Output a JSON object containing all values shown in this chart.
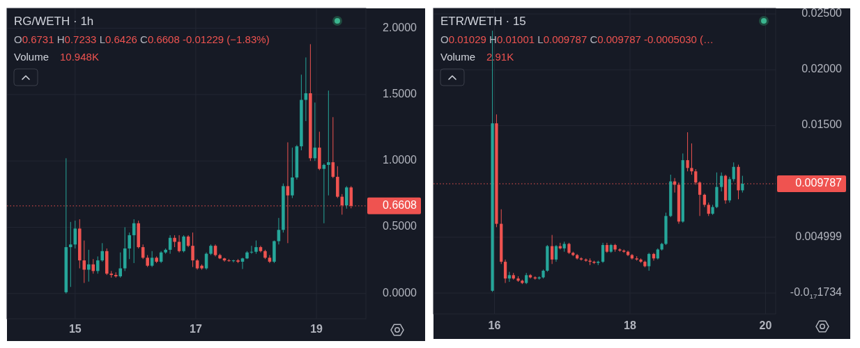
{
  "chart_data": [
    {
      "type": "candlestick",
      "title": "RG/WETH · 1h",
      "subtitle": "O0.6731 H0.7233 L0.6426 C0.6608 -0.01229 (−1.83%)",
      "annotations": [
        "Volume",
        "10.948K"
      ],
      "x": [
        14.85,
        14.925,
        15.0,
        15.075,
        15.15,
        15.225,
        15.3,
        15.375,
        15.45,
        15.525,
        15.6,
        15.675,
        15.75,
        15.825,
        15.9,
        15.975,
        16.05,
        16.125,
        16.2,
        16.275,
        16.35,
        16.425,
        16.5,
        16.575,
        16.65,
        16.725,
        16.8,
        16.875,
        16.95,
        17.025,
        17.1,
        17.175,
        17.25,
        17.325,
        17.4,
        17.475,
        17.55,
        17.625,
        17.7,
        17.775,
        17.85,
        17.925,
        18.0,
        18.075,
        18.15,
        18.225,
        18.3,
        18.375,
        18.45,
        18.525,
        18.6,
        18.675,
        18.75,
        18.825,
        18.9,
        18.975,
        19.05,
        19.125,
        19.2,
        19.275,
        19.35,
        19.425,
        19.5,
        19.575
      ],
      "ohlc": [
        [
          0.01,
          1.02,
          0.0,
          0.35
        ],
        [
          0.35,
          0.54,
          0.05,
          0.37
        ],
        [
          0.37,
          0.55,
          0.34,
          0.49
        ],
        [
          0.49,
          0.56,
          0.19,
          0.25
        ],
        [
          0.25,
          0.4,
          0.08,
          0.18
        ],
        [
          0.18,
          0.33,
          0.09,
          0.22
        ],
        [
          0.22,
          0.26,
          0.15,
          0.17
        ],
        [
          0.17,
          0.28,
          0.15,
          0.25
        ],
        [
          0.25,
          0.38,
          0.24,
          0.32
        ],
        [
          0.32,
          0.34,
          0.14,
          0.15
        ],
        [
          0.15,
          0.17,
          0.12,
          0.14
        ],
        [
          0.14,
          0.16,
          0.12,
          0.13
        ],
        [
          0.13,
          0.31,
          0.12,
          0.19
        ],
        [
          0.19,
          0.5,
          0.17,
          0.34
        ],
        [
          0.34,
          0.46,
          0.26,
          0.44
        ],
        [
          0.44,
          0.56,
          0.23,
          0.53
        ],
        [
          0.53,
          0.55,
          0.34,
          0.35
        ],
        [
          0.35,
          0.37,
          0.26,
          0.27
        ],
        [
          0.27,
          0.29,
          0.2,
          0.21
        ],
        [
          0.21,
          0.32,
          0.2,
          0.27
        ],
        [
          0.27,
          0.28,
          0.23,
          0.24
        ],
        [
          0.24,
          0.32,
          0.23,
          0.31
        ],
        [
          0.31,
          0.34,
          0.3,
          0.33
        ],
        [
          0.33,
          0.44,
          0.3,
          0.42
        ],
        [
          0.42,
          0.44,
          0.35,
          0.39
        ],
        [
          0.39,
          0.44,
          0.31,
          0.32
        ],
        [
          0.32,
          0.44,
          0.31,
          0.43
        ],
        [
          0.43,
          0.44,
          0.35,
          0.36
        ],
        [
          0.36,
          0.46,
          0.2,
          0.25
        ],
        [
          0.25,
          0.26,
          0.18,
          0.19
        ],
        [
          0.21,
          0.22,
          0.18,
          0.19
        ],
        [
          0.19,
          0.31,
          0.18,
          0.3
        ],
        [
          0.3,
          0.37,
          0.29,
          0.36
        ],
        [
          0.36,
          0.37,
          0.28,
          0.29
        ],
        [
          0.29,
          0.3,
          0.26,
          0.265
        ],
        [
          0.265,
          0.27,
          0.24,
          0.25
        ],
        [
          0.25,
          0.26,
          0.24,
          0.245
        ],
        [
          0.245,
          0.255,
          0.235,
          0.25
        ],
        [
          0.25,
          0.26,
          0.23,
          0.24
        ],
        [
          0.24,
          0.27,
          0.185,
          0.265
        ],
        [
          0.265,
          0.32,
          0.26,
          0.31
        ],
        [
          0.31,
          0.36,
          0.3,
          0.315
        ],
        [
          0.315,
          0.4,
          0.3,
          0.35
        ],
        [
          0.35,
          0.36,
          0.31,
          0.32
        ],
        [
          0.32,
          0.33,
          0.26,
          0.27
        ],
        [
          0.27,
          0.29,
          0.23,
          0.24
        ],
        [
          0.24,
          0.4,
          0.23,
          0.395
        ],
        [
          0.395,
          0.57,
          0.37,
          0.48
        ],
        [
          0.48,
          0.83,
          0.46,
          0.81
        ],
        [
          0.81,
          1.14,
          0.38,
          0.74
        ],
        [
          0.74,
          1.1,
          0.72,
          0.875
        ],
        [
          0.875,
          1.12,
          0.86,
          1.11
        ],
        [
          1.11,
          1.65,
          1.08,
          1.46
        ],
        [
          1.46,
          1.78,
          1.3,
          1.51
        ],
        [
          1.51,
          1.88,
          1.0,
          1.02
        ],
        [
          1.02,
          1.44,
          1.0,
          1.1
        ],
        [
          1.1,
          1.22,
          0.93,
          0.94
        ],
        [
          0.94,
          0.98,
          0.53,
          0.97
        ],
        [
          0.97,
          1.53,
          0.74,
          0.99
        ],
        [
          0.99,
          1.33,
          0.87,
          0.88
        ],
        [
          0.88,
          0.96,
          0.72,
          0.73
        ],
        [
          0.73,
          0.75,
          0.595,
          0.665
        ],
        [
          0.665,
          0.81,
          0.64,
          0.8
        ],
        [
          0.8,
          0.81,
          0.6426,
          0.6608
        ]
      ],
      "colors": [
        "#26a69a",
        "#26a69a",
        "#26a69a",
        "#ef5350",
        "#ef5350",
        "#26a69a",
        "#ef5350",
        "#26a69a",
        "#26a69a",
        "#ef5350",
        "#ef5350",
        "#ef5350",
        "#26a69a",
        "#26a69a",
        "#26a69a",
        "#26a69a",
        "#ef5350",
        "#ef5350",
        "#ef5350",
        "#26a69a",
        "#ef5350",
        "#26a69a",
        "#26a69a",
        "#26a69a",
        "#ef5350",
        "#ef5350",
        "#26a69a",
        "#ef5350",
        "#ef5350",
        "#ef5350",
        "#ef5350",
        "#26a69a",
        "#26a69a",
        "#ef5350",
        "#ef5350",
        "#ef5350",
        "#ef5350",
        "#26a69a",
        "#ef5350",
        "#26a69a",
        "#26a69a",
        "#26a69a",
        "#26a69a",
        "#ef5350",
        "#ef5350",
        "#ef5350",
        "#26a69a",
        "#26a69a",
        "#26a69a",
        "#ef5350",
        "#26a69a",
        "#26a69a",
        "#26a69a",
        "#26a69a",
        "#ef5350",
        "#26a69a",
        "#ef5350",
        "#26a69a",
        "#26a69a",
        "#ef5350",
        "#ef5350",
        "#ef5350",
        "#26a69a",
        "#ef5350"
      ],
      "xlim": [
        13.87,
        19.82
      ],
      "ylim": [
        -0.19,
        2.15
      ],
      "xticks": [
        15,
        17,
        19
      ],
      "yticks": [
        {
          "value": 0,
          "label": "0.0000"
        },
        {
          "value": 0.5,
          "label": "0.5000"
        },
        {
          "value": 1,
          "label": "1.0000"
        },
        {
          "value": 1.5,
          "label": "1.5000"
        },
        {
          "value": 2,
          "label": "2.0000"
        }
      ],
      "grid": true,
      "ref_lines": [
        {
          "axis": "y",
          "value": 0.6608,
          "label": "0.6608",
          "color": "#ef5350",
          "line_style": "dotted"
        }
      ]
    },
    {
      "type": "candlestick",
      "title": "ETR/WETH · 15",
      "subtitle": "O0.01029 H0.01001 L0.009787 C0.009787 -0.0005030 (…",
      "annotations": [
        "Volume",
        "2.91K"
      ],
      "x": [
        15.97,
        16.03,
        16.1,
        16.16,
        16.22,
        16.28,
        16.35,
        16.41,
        16.47,
        16.53,
        16.6,
        16.66,
        16.72,
        16.78,
        16.85,
        16.91,
        16.97,
        17.03,
        17.1,
        17.16,
        17.22,
        17.28,
        17.35,
        17.41,
        17.47,
        17.53,
        17.6,
        17.66,
        17.72,
        17.78,
        17.85,
        17.91,
        17.97,
        18.03,
        18.1,
        18.16,
        18.22,
        18.28,
        18.35,
        18.41,
        18.47,
        18.53,
        18.6,
        18.66,
        18.72,
        18.78,
        18.85,
        18.91,
        18.97,
        19.03,
        19.1,
        19.16,
        19.22,
        19.28,
        19.35,
        19.41,
        19.47,
        19.53,
        19.6,
        19.66
      ],
      "ohlc": [
        [
          0.0002,
          0.0235,
          0.0001,
          0.0152
        ],
        [
          0.0152,
          0.016,
          0.0059,
          0.0062
        ],
        [
          0.0062,
          0.0075,
          0.0026,
          0.0028
        ],
        [
          0.0028,
          0.003,
          0.0009,
          0.0013
        ],
        [
          0.0013,
          0.0019,
          0.001,
          0.0016
        ],
        [
          0.0016,
          0.0018,
          0.0012,
          0.0013
        ],
        [
          0.0013,
          0.0015,
          0.001,
          0.0011
        ],
        [
          0.0011,
          0.0012,
          0.0008,
          0.0009
        ],
        [
          0.0009,
          0.0018,
          0.0008,
          0.0016
        ],
        [
          0.0016,
          0.0017,
          0.0013,
          0.0014
        ],
        [
          0.0014,
          0.0015,
          0.0012,
          0.0013
        ],
        [
          0.0013,
          0.0015,
          0.0012,
          0.0014
        ],
        [
          0.0014,
          0.0021,
          0.0013,
          0.002
        ],
        [
          0.002,
          0.0043,
          0.0019,
          0.0042
        ],
        [
          0.0042,
          0.0052,
          0.0026,
          0.003
        ],
        [
          0.003,
          0.0043,
          0.0028,
          0.0042
        ],
        [
          0.0042,
          0.0045,
          0.0039,
          0.004
        ],
        [
          0.004,
          0.0046,
          0.0037,
          0.0044
        ],
        [
          0.0044,
          0.0045,
          0.0035,
          0.0036
        ],
        [
          0.0036,
          0.0037,
          0.0033,
          0.0034
        ],
        [
          0.0034,
          0.0035,
          0.003,
          0.0031
        ],
        [
          0.0031,
          0.0032,
          0.0029,
          0.003
        ],
        [
          0.003,
          0.0031,
          0.0028,
          0.0029
        ],
        [
          0.0029,
          0.0031,
          0.0025,
          0.0028
        ],
        [
          0.0028,
          0.0029,
          0.0026,
          0.0027
        ],
        [
          0.0027,
          0.0029,
          0.0025,
          0.0028
        ],
        [
          0.0028,
          0.0045,
          0.0027,
          0.0043
        ],
        [
          0.0043,
          0.0045,
          0.0036,
          0.0037
        ],
        [
          0.0037,
          0.0044,
          0.0036,
          0.0043
        ],
        [
          0.0043,
          0.0044,
          0.0037,
          0.0039
        ],
        [
          0.0039,
          0.004,
          0.0037,
          0.0038
        ],
        [
          0.0038,
          0.0039,
          0.0036,
          0.0037
        ],
        [
          0.0037,
          0.0038,
          0.0033,
          0.0034
        ],
        [
          0.0034,
          0.0035,
          0.003,
          0.0031
        ],
        [
          0.0031,
          0.0033,
          0.0029,
          0.003
        ],
        [
          0.003,
          0.0031,
          0.0027,
          0.0028
        ],
        [
          0.0028,
          0.0029,
          0.0023,
          0.0024
        ],
        [
          0.0024,
          0.0036,
          0.002,
          0.0035
        ],
        [
          0.0035,
          0.0036,
          0.0029,
          0.0031
        ],
        [
          0.0031,
          0.004,
          0.003,
          0.0039
        ],
        [
          0.0039,
          0.0045,
          0.0038,
          0.0044
        ],
        [
          0.0044,
          0.0072,
          0.0043,
          0.0069
        ],
        [
          0.0069,
          0.0106,
          0.0068,
          0.01
        ],
        [
          0.01,
          0.0103,
          0.009,
          0.0097
        ],
        [
          0.0097,
          0.0099,
          0.0062,
          0.0064
        ],
        [
          0.0064,
          0.0125,
          0.0063,
          0.0119
        ],
        [
          0.0119,
          0.0144,
          0.0109,
          0.0112
        ],
        [
          0.0112,
          0.0134,
          0.0106,
          0.0109
        ],
        [
          0.0109,
          0.0111,
          0.0097,
          0.0099
        ],
        [
          0.0099,
          0.01,
          0.0069,
          0.0088
        ],
        [
          0.0088,
          0.0089,
          0.0077,
          0.0079
        ],
        [
          0.0079,
          0.0081,
          0.0069,
          0.0071
        ],
        [
          0.0071,
          0.0079,
          0.007,
          0.0077
        ],
        [
          0.0077,
          0.0108,
          0.0076,
          0.0095
        ],
        [
          0.0095,
          0.0108,
          0.0091,
          0.0105
        ],
        [
          0.0105,
          0.0106,
          0.008,
          0.0083
        ],
        [
          0.0083,
          0.0104,
          0.0081,
          0.0102
        ],
        [
          0.0102,
          0.0117,
          0.01,
          0.0113
        ],
        [
          0.0113,
          0.0115,
          0.0084,
          0.0092
        ],
        [
          0.0092,
          0.0105,
          0.009,
          0.009787
        ]
      ],
      "colors": [
        "#26a69a",
        "#ef5350",
        "#ef5350",
        "#ef5350",
        "#26a69a",
        "#ef5350",
        "#ef5350",
        "#ef5350",
        "#26a69a",
        "#ef5350",
        "#ef5350",
        "#26a69a",
        "#26a69a",
        "#26a69a",
        "#ef5350",
        "#26a69a",
        "#ef5350",
        "#26a69a",
        "#ef5350",
        "#ef5350",
        "#ef5350",
        "#ef5350",
        "#ef5350",
        "#ef5350",
        "#ef5350",
        "#26a69a",
        "#26a69a",
        "#ef5350",
        "#26a69a",
        "#ef5350",
        "#ef5350",
        "#ef5350",
        "#ef5350",
        "#ef5350",
        "#ef5350",
        "#ef5350",
        "#ef5350",
        "#26a69a",
        "#ef5350",
        "#26a69a",
        "#26a69a",
        "#26a69a",
        "#26a69a",
        "#ef5350",
        "#ef5350",
        "#26a69a",
        "#ef5350",
        "#ef5350",
        "#ef5350",
        "#ef5350",
        "#ef5350",
        "#ef5350",
        "#26a69a",
        "#26a69a",
        "#26a69a",
        "#ef5350",
        "#26a69a",
        "#26a69a",
        "#ef5350",
        "#26a69a"
      ],
      "xlim": [
        15.1,
        20.15
      ],
      "ylim": [
        -0.00187,
        0.0255
      ],
      "xticks": [
        16,
        18,
        20
      ],
      "yticks": [
        {
          "value": -1.734e-18,
          "label": "-0.0$_{17}$1734"
        },
        {
          "value": 0.004999,
          "label": "0.004999"
        },
        {
          "value": 0.015,
          "label": "0.01500"
        },
        {
          "value": 0.02,
          "label": "0.02000"
        },
        {
          "value": 0.025,
          "label": "0.02500"
        }
      ],
      "grid": true,
      "ref_lines": [
        {
          "axis": "y",
          "value": 0.009787,
          "label": "0.009787",
          "color": "#ef5350",
          "line_style": "dotted"
        }
      ]
    }
  ]
}
